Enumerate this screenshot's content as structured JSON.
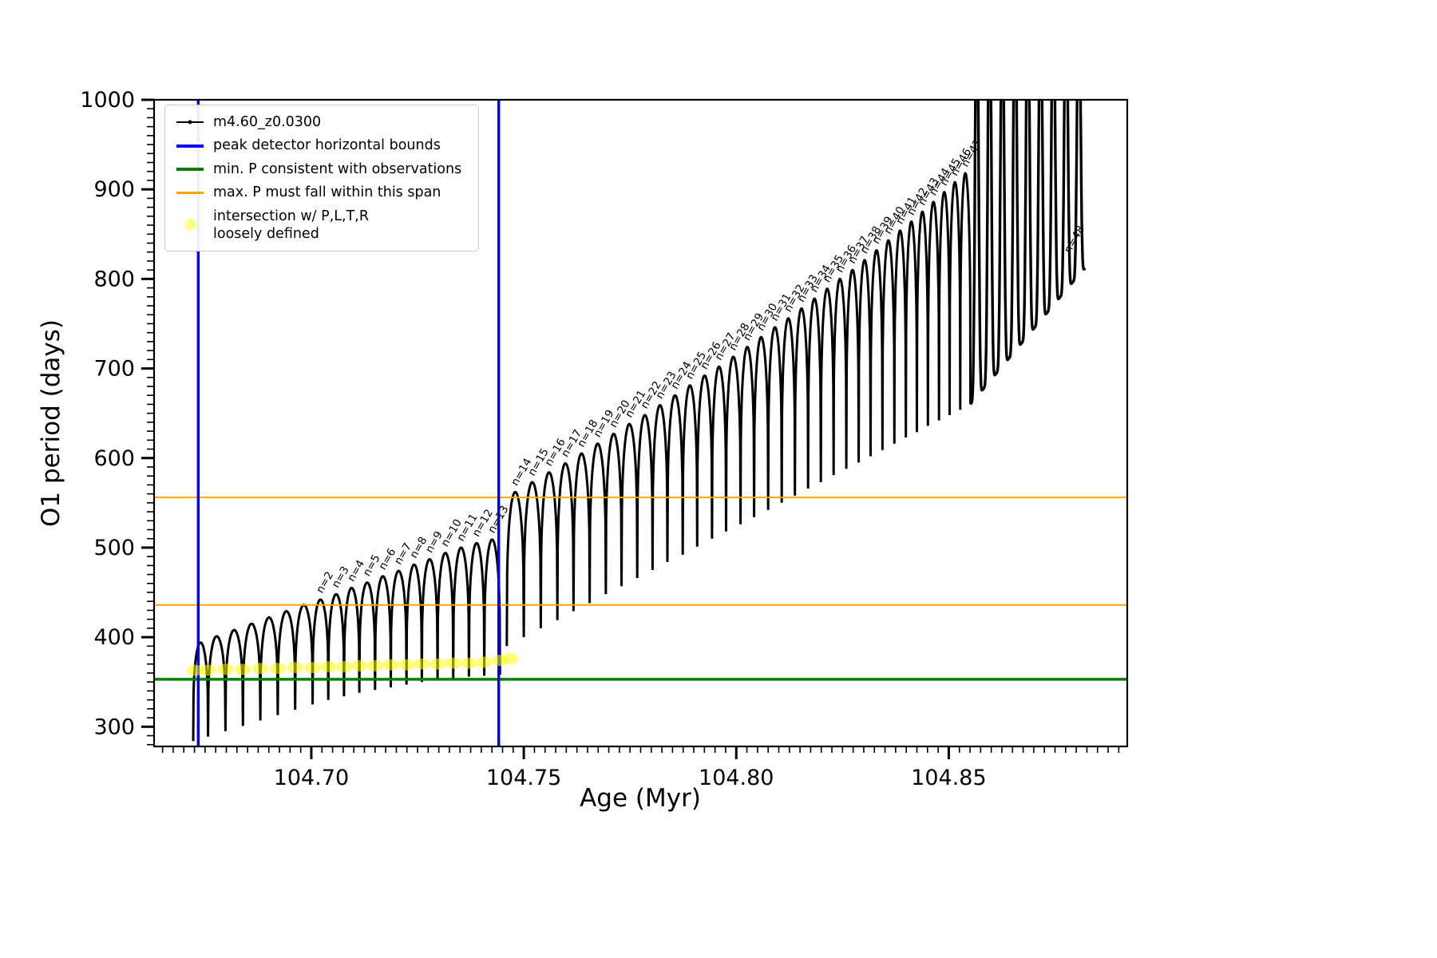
{
  "legend": {
    "entries": [
      {
        "label": "m4.60_z0.0300",
        "kind": "line-marker",
        "color": "#000000"
      },
      {
        "label": "peak detector horizontal bounds",
        "kind": "line",
        "color": "#0000ff",
        "width": 4
      },
      {
        "label": "min. P consistent with observations",
        "kind": "line",
        "color": "#008000",
        "width": 4
      },
      {
        "label": "max. P must fall within this span",
        "kind": "line",
        "color": "#ffa500",
        "width": 2.5
      },
      {
        "label": "intersection w/ P,L,T,R\nloosely defined",
        "kind": "dot",
        "color": "#ffff00",
        "opacity": 0.45
      }
    ]
  },
  "chart_data": {
    "type": "line",
    "title": "",
    "xlabel": "Age (Myr)",
    "ylabel": "O1 period (days)",
    "series_name": "m4.60_z0.0300",
    "series_color": "#000000",
    "grid": false,
    "legend_position": "upper left",
    "xlim": [
      104.663,
      104.892
    ],
    "ylim": [
      278,
      1000
    ],
    "xticks": [
      {
        "v": 104.7,
        "label": "104.70"
      },
      {
        "v": 104.75,
        "label": "104.75"
      },
      {
        "v": 104.8,
        "label": "104.80"
      },
      {
        "v": 104.85,
        "label": "104.85"
      }
    ],
    "yticks": [
      300,
      400,
      500,
      600,
      700,
      800,
      900,
      1000
    ],
    "x_minor_step": 0.0025,
    "y_minor_step": 10,
    "vlines": {
      "name": "peak detector horizontal bounds",
      "x": [
        104.6734,
        104.7441
      ],
      "color": "#0000ff",
      "width": 3.5
    },
    "hlines": [
      {
        "name": "min. P consistent with observations",
        "y": 353,
        "color": "#008000",
        "width": 3.5
      },
      {
        "name": "max. P span lower",
        "y": 436,
        "color": "#ffa500",
        "width": 2
      },
      {
        "name": "max. P span upper",
        "y": 556,
        "color": "#ffa500",
        "width": 2
      }
    ],
    "teeth_fields": [
      "label",
      "x_start",
      "x_end",
      "dip_start",
      "dip_end",
      "peak",
      "shape(a=arc,s=clipped-spike)"
    ],
    "teeth": [
      [
        null,
        104.6722,
        104.6757,
        284,
        289,
        394,
        "a"
      ],
      [
        null,
        104.6757,
        104.6798,
        289,
        295,
        401,
        "a"
      ],
      [
        null,
        104.6798,
        104.6839,
        295,
        301,
        408,
        "a"
      ],
      [
        null,
        104.6839,
        104.688,
        301,
        307,
        415,
        "a"
      ],
      [
        null,
        104.688,
        104.6921,
        307,
        313,
        422,
        "a"
      ],
      [
        null,
        104.6921,
        104.6962,
        313,
        319,
        429,
        "a"
      ],
      [
        null,
        104.6962,
        104.7003,
        319,
        325,
        436,
        "a"
      ],
      [
        "n=2",
        104.7003,
        104.704,
        325,
        330,
        442,
        "a"
      ],
      [
        "n=3",
        104.704,
        104.7077,
        330,
        334,
        448,
        "a"
      ],
      [
        "n=4",
        104.7077,
        104.7113,
        334,
        338,
        455,
        "a"
      ],
      [
        "n=5",
        104.7113,
        104.715,
        338,
        341,
        461,
        "a"
      ],
      [
        "n=6",
        104.715,
        104.7187,
        341,
        344,
        468,
        "a"
      ],
      [
        "n=7",
        104.7187,
        104.7224,
        344,
        347,
        474,
        "a"
      ],
      [
        "n=8",
        104.7224,
        104.726,
        347,
        350,
        481,
        "a"
      ],
      [
        "n=9",
        104.726,
        104.7297,
        350,
        352,
        487,
        "a"
      ],
      [
        "n=10",
        104.7297,
        104.7334,
        352,
        354,
        494,
        "a"
      ],
      [
        "n=11",
        104.7334,
        104.7371,
        354,
        356,
        500,
        "a"
      ],
      [
        "n=12",
        104.7371,
        104.7407,
        356,
        357,
        505,
        "a"
      ],
      [
        "n=13",
        104.7407,
        104.7444,
        357,
        358,
        509,
        "a"
      ],
      [
        "n=14",
        104.746,
        104.75,
        390,
        400,
        562,
        "a"
      ],
      [
        "n=15",
        104.75,
        104.754,
        400,
        410,
        573,
        "a"
      ],
      [
        "n=16",
        104.754,
        104.7579,
        410,
        419,
        584,
        "a"
      ],
      [
        "n=17",
        104.7579,
        104.7617,
        419,
        429,
        594,
        "a"
      ],
      [
        "n=18",
        104.7617,
        104.7655,
        429,
        438,
        605,
        "a"
      ],
      [
        "n=19",
        104.7655,
        104.7693,
        438,
        448,
        616,
        "a"
      ],
      [
        "n=20",
        104.7693,
        104.773,
        448,
        457,
        627,
        "a"
      ],
      [
        "n=21",
        104.773,
        104.7767,
        457,
        466,
        638,
        "a"
      ],
      [
        "n=22",
        104.7767,
        104.7803,
        466,
        475,
        648,
        "a"
      ],
      [
        "n=23",
        104.7803,
        104.7838,
        475,
        484,
        659,
        "a"
      ],
      [
        "n=24",
        104.7838,
        104.7874,
        484,
        492,
        670,
        "a"
      ],
      [
        "n=25",
        104.7874,
        104.7908,
        492,
        501,
        681,
        "a"
      ],
      [
        "n=26",
        104.7908,
        104.7943,
        501,
        510,
        692,
        "a"
      ],
      [
        "n=27",
        104.7943,
        104.7976,
        510,
        518,
        702,
        "a"
      ],
      [
        "n=28",
        104.7976,
        104.801,
        518,
        526,
        713,
        "a"
      ],
      [
        "n=29",
        104.801,
        104.8042,
        526,
        534,
        724,
        "a"
      ],
      [
        "n=30",
        104.8042,
        104.8075,
        534,
        542,
        735,
        "a"
      ],
      [
        "n=31",
        104.8075,
        104.8107,
        542,
        550,
        746,
        "a"
      ],
      [
        "n=32",
        104.8107,
        104.8138,
        550,
        558,
        756,
        "a"
      ],
      [
        "n=33",
        104.8138,
        104.8169,
        558,
        566,
        767,
        "a"
      ],
      [
        "n=34",
        104.8169,
        104.8199,
        566,
        573,
        778,
        "a"
      ],
      [
        "n=35",
        104.8199,
        104.8229,
        573,
        581,
        789,
        "a"
      ],
      [
        "n=36",
        104.8229,
        104.8259,
        581,
        588,
        800,
        "a"
      ],
      [
        "n=37",
        104.8259,
        104.8288,
        588,
        595,
        810,
        "a"
      ],
      [
        "n=38",
        104.8288,
        104.8316,
        595,
        602,
        821,
        "a"
      ],
      [
        "n=39",
        104.8316,
        104.8344,
        602,
        609,
        832,
        "a"
      ],
      [
        "n=40",
        104.8344,
        104.8372,
        609,
        616,
        843,
        "a"
      ],
      [
        "n=41",
        104.8372,
        104.8399,
        616,
        623,
        854,
        "a"
      ],
      [
        "n=42",
        104.8399,
        104.8425,
        623,
        629,
        864,
        "a"
      ],
      [
        "n=43",
        104.8425,
        104.8451,
        629,
        636,
        875,
        "a"
      ],
      [
        "n=44",
        104.8451,
        104.8477,
        636,
        642,
        886,
        "a"
      ],
      [
        "n=45",
        104.8477,
        104.8502,
        642,
        648,
        897,
        "a"
      ],
      [
        "n=46",
        104.8502,
        104.8527,
        648,
        654,
        908,
        "a"
      ],
      [
        "n=47",
        104.8527,
        104.8551,
        654,
        660,
        918,
        "a"
      ],
      [
        null,
        104.8551,
        104.8581,
        660,
        677,
        1150,
        "s"
      ],
      [
        null,
        104.8581,
        104.8611,
        677,
        694,
        1150,
        "s"
      ],
      [
        null,
        104.8611,
        104.8641,
        694,
        711,
        1150,
        "s"
      ],
      [
        null,
        104.8641,
        104.8671,
        711,
        728,
        1150,
        "s"
      ],
      [
        null,
        104.8671,
        104.8701,
        728,
        745,
        1150,
        "s"
      ],
      [
        null,
        104.8701,
        104.8731,
        745,
        762,
        1150,
        "s"
      ],
      [
        null,
        104.8731,
        104.8761,
        762,
        779,
        1150,
        "s"
      ],
      [
        null,
        104.8761,
        104.8791,
        779,
        796,
        1150,
        "s"
      ],
      [
        null,
        104.8791,
        104.8821,
        796,
        812,
        1150,
        "s"
      ]
    ],
    "extra_labels": [
      {
        "text": "n=48",
        "x": 104.8785,
        "y": 828
      }
    ],
    "intersection_markers": {
      "name": "intersection w/ P,L,T,R loosely defined",
      "color": "#ffff00",
      "opacity": 0.55,
      "rx": 10,
      "ry": 7,
      "points": [
        [
          104.6726,
          363
        ],
        [
          104.6757,
          363
        ],
        [
          104.6798,
          364
        ],
        [
          104.6839,
          364
        ],
        [
          104.688,
          365
        ],
        [
          104.6921,
          365
        ],
        [
          104.6962,
          366
        ],
        [
          104.7003,
          366
        ],
        [
          104.704,
          367
        ],
        [
          104.7077,
          367
        ],
        [
          104.7113,
          368
        ],
        [
          104.715,
          368
        ],
        [
          104.7187,
          369
        ],
        [
          104.7224,
          369
        ],
        [
          104.726,
          370
        ],
        [
          104.7297,
          370
        ],
        [
          104.7334,
          371
        ],
        [
          104.7371,
          371
        ],
        [
          104.7407,
          372
        ],
        [
          104.7444,
          374
        ],
        [
          104.7468,
          376
        ]
      ]
    }
  }
}
